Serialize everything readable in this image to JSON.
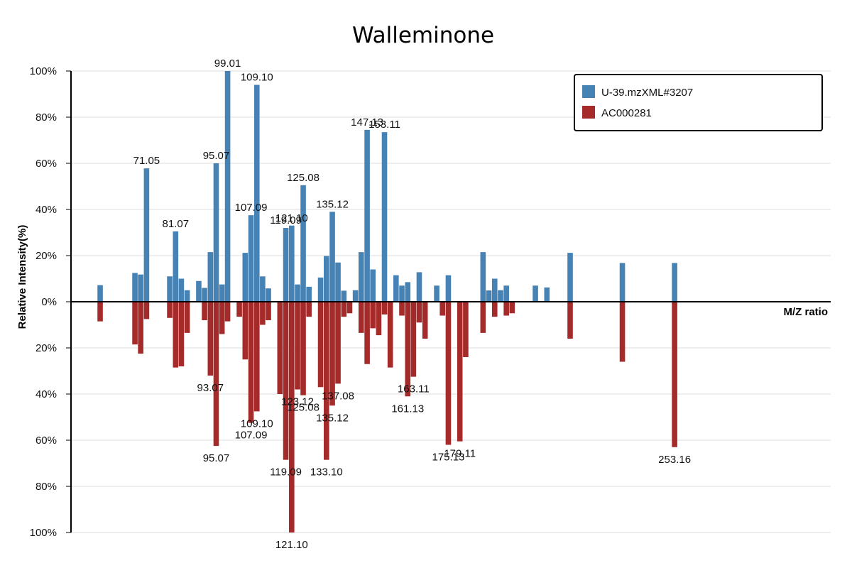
{
  "chart_data": {
    "type": "bar",
    "title": "Walleminone",
    "ylabel": "Relative Intensity(%)",
    "xlabel": "M/Z ratio",
    "ylim": [
      -100,
      100
    ],
    "y_ticks": [
      {
        "value": 100,
        "label": "100%"
      },
      {
        "value": 80,
        "label": "80%"
      },
      {
        "value": 60,
        "label": "60%"
      },
      {
        "value": 40,
        "label": "40%"
      },
      {
        "value": 20,
        "label": "20%"
      },
      {
        "value": 0,
        "label": "0%"
      },
      {
        "value": -20,
        "label": "20%"
      },
      {
        "value": -40,
        "label": "40%"
      },
      {
        "value": -60,
        "label": "60%"
      },
      {
        "value": -80,
        "label": "80%"
      },
      {
        "value": -100,
        "label": "100%"
      }
    ],
    "grid": true,
    "legend_position": "top-right",
    "series": [
      {
        "name": "U-39.mzXML#3207",
        "color": "#4682b4",
        "direction": "up",
        "points": [
          {
            "mz": 55.05,
            "y": 7.2
          },
          {
            "mz": 67.05,
            "y": 12.5
          },
          {
            "mz": 69.03,
            "y": 11.8
          },
          {
            "mz": 71.05,
            "y": 57.8,
            "label": "71.05"
          },
          {
            "mz": 79.05,
            "y": 11.0
          },
          {
            "mz": 81.07,
            "y": 30.5,
            "label": "81.07"
          },
          {
            "mz": 83.05,
            "y": 10.0
          },
          {
            "mz": 85.07,
            "y": 5.0
          },
          {
            "mz": 89.06,
            "y": 9.0
          },
          {
            "mz": 91.05,
            "y": 6.0
          },
          {
            "mz": 93.07,
            "y": 21.5
          },
          {
            "mz": 95.07,
            "y": 60.0,
            "label": "95.07"
          },
          {
            "mz": 97.07,
            "y": 7.5
          },
          {
            "mz": 99.01,
            "y": 100.0,
            "label": "99.01"
          },
          {
            "mz": 105.07,
            "y": 21.2
          },
          {
            "mz": 107.09,
            "y": 37.5,
            "label": "107.09"
          },
          {
            "mz": 109.1,
            "y": 94.0,
            "label": "109.10"
          },
          {
            "mz": 111.08,
            "y": 11.0
          },
          {
            "mz": 113.08,
            "y": 5.8
          },
          {
            "mz": 119.09,
            "y": 32.0,
            "label": "119.09"
          },
          {
            "mz": 121.1,
            "y": 33.0,
            "label": "121.10"
          },
          {
            "mz": 123.12,
            "y": 7.5
          },
          {
            "mz": 125.08,
            "y": 50.5,
            "label": "125.08"
          },
          {
            "mz": 127.07,
            "y": 6.5
          },
          {
            "mz": 131.08,
            "y": 10.5
          },
          {
            "mz": 133.1,
            "y": 19.8
          },
          {
            "mz": 135.12,
            "y": 39.0,
            "label": "135.12"
          },
          {
            "mz": 137.08,
            "y": 17.0
          },
          {
            "mz": 139.11,
            "y": 4.8
          },
          {
            "mz": 143.1,
            "y": 5.0
          },
          {
            "mz": 145.1,
            "y": 21.5
          },
          {
            "mz": 147.13,
            "y": 74.5,
            "label": "147.13"
          },
          {
            "mz": 149.11,
            "y": 14.0
          },
          {
            "mz": 153.11,
            "y": 73.5,
            "label": "153.11"
          },
          {
            "mz": 157.1,
            "y": 11.5
          },
          {
            "mz": 159.11,
            "y": 7.0
          },
          {
            "mz": 161.13,
            "y": 8.5
          },
          {
            "mz": 165.1,
            "y": 12.8
          },
          {
            "mz": 171.12,
            "y": 7.0
          },
          {
            "mz": 175.13,
            "y": 11.5
          },
          {
            "mz": 187.1,
            "y": 21.5
          },
          {
            "mz": 189.11,
            "y": 4.9
          },
          {
            "mz": 191.12,
            "y": 10.0
          },
          {
            "mz": 193.13,
            "y": 5.0
          },
          {
            "mz": 195.14,
            "y": 7.0
          },
          {
            "mz": 205.15,
            "y": 7.0
          },
          {
            "mz": 209.13,
            "y": 6.2
          },
          {
            "mz": 217.14,
            "y": 21.2
          },
          {
            "mz": 235.15,
            "y": 16.8
          },
          {
            "mz": 253.16,
            "y": 16.8
          }
        ]
      },
      {
        "name": "AC000281",
        "color": "#a52a2a",
        "direction": "down",
        "points": [
          {
            "mz": 55.05,
            "y": 8.5
          },
          {
            "mz": 67.05,
            "y": 18.5
          },
          {
            "mz": 69.03,
            "y": 22.5
          },
          {
            "mz": 71.05,
            "y": 7.5
          },
          {
            "mz": 79.05,
            "y": 7.0
          },
          {
            "mz": 81.07,
            "y": 28.5
          },
          {
            "mz": 83.05,
            "y": 28.0
          },
          {
            "mz": 85.07,
            "y": 13.5
          },
          {
            "mz": 91.05,
            "y": 8.0
          },
          {
            "mz": 93.07,
            "y": 32.0,
            "label": "93.07"
          },
          {
            "mz": 95.07,
            "y": 62.5,
            "label": "95.07"
          },
          {
            "mz": 97.07,
            "y": 14.0
          },
          {
            "mz": 99.01,
            "y": 8.5
          },
          {
            "mz": 103.05,
            "y": 6.5
          },
          {
            "mz": 105.07,
            "y": 25.0
          },
          {
            "mz": 107.09,
            "y": 52.5,
            "label": "107.09"
          },
          {
            "mz": 109.1,
            "y": 47.5,
            "label": "109.10"
          },
          {
            "mz": 111.08,
            "y": 10.0
          },
          {
            "mz": 113.08,
            "y": 8.0
          },
          {
            "mz": 117.07,
            "y": 40.0
          },
          {
            "mz": 119.09,
            "y": 68.5,
            "label": "119.09"
          },
          {
            "mz": 121.1,
            "y": 100.0,
            "label": "121.10"
          },
          {
            "mz": 123.12,
            "y": 38.0,
            "label": "123.12"
          },
          {
            "mz": 125.08,
            "y": 40.5,
            "label": "125.08"
          },
          {
            "mz": 127.07,
            "y": 6.5
          },
          {
            "mz": 131.08,
            "y": 37.0
          },
          {
            "mz": 133.1,
            "y": 68.5,
            "label": "133.10"
          },
          {
            "mz": 135.12,
            "y": 45.0,
            "label": "135.12"
          },
          {
            "mz": 137.08,
            "y": 35.5,
            "label": "137.08"
          },
          {
            "mz": 139.11,
            "y": 6.5
          },
          {
            "mz": 141.1,
            "y": 5.0
          },
          {
            "mz": 145.1,
            "y": 13.5
          },
          {
            "mz": 147.13,
            "y": 27.0
          },
          {
            "mz": 149.11,
            "y": 11.5
          },
          {
            "mz": 151.12,
            "y": 14.5
          },
          {
            "mz": 153.11,
            "y": 5.5
          },
          {
            "mz": 155.1,
            "y": 28.5
          },
          {
            "mz": 159.11,
            "y": 6.0
          },
          {
            "mz": 161.13,
            "y": 41.0,
            "label": "161.13"
          },
          {
            "mz": 163.11,
            "y": 32.5,
            "label": "163.11"
          },
          {
            "mz": 165.1,
            "y": 9.0
          },
          {
            "mz": 167.11,
            "y": 16.0
          },
          {
            "mz": 173.11,
            "y": 6.0
          },
          {
            "mz": 175.13,
            "y": 62.0,
            "label": "175.13"
          },
          {
            "mz": 179.11,
            "y": 60.5,
            "label": "179.11"
          },
          {
            "mz": 181.12,
            "y": 24.0
          },
          {
            "mz": 187.1,
            "y": 13.5
          },
          {
            "mz": 191.12,
            "y": 6.5
          },
          {
            "mz": 195.14,
            "y": 6.0
          },
          {
            "mz": 197.13,
            "y": 5.0
          },
          {
            "mz": 217.14,
            "y": 16.0
          },
          {
            "mz": 235.15,
            "y": 26.0
          },
          {
            "mz": 253.16,
            "y": 63.0,
            "label": "253.16"
          }
        ]
      }
    ]
  }
}
